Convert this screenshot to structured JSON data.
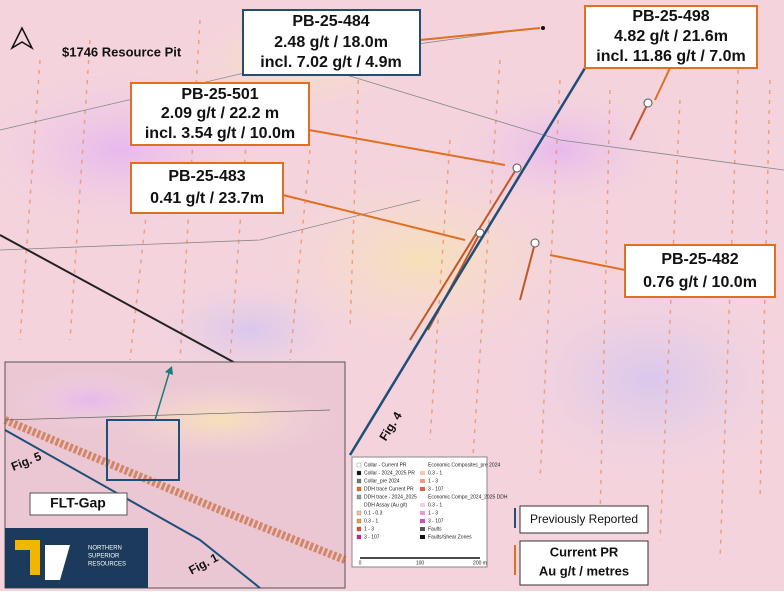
{
  "map_title": "$1746 Resource Pit",
  "callouts": [
    {
      "hole": "PB-25-484",
      "lines": [
        "2.48 g/t  / 18.0m",
        "incl. 7.02 g/t / 4.9m"
      ]
    },
    {
      "hole": "PB-25-498",
      "lines": [
        "4.82 g/t / 21.6m",
        "incl. 11.86 g/t / 7.0m"
      ]
    },
    {
      "hole": "PB-25-501",
      "lines": [
        "2.09 g/t / 22.2 m",
        "incl. 3.54 g/t / 10.0m"
      ]
    },
    {
      "hole": "PB-25-483",
      "lines": [
        "0.41 g/t / 23.7m"
      ]
    },
    {
      "hole": "PB-25-482",
      "lines": [
        "0.76 g/t / 10.0m"
      ]
    }
  ],
  "figure_refs": [
    "Fig. 4",
    "Fig. 5",
    "Fig. 1"
  ],
  "fault_label": "FLT-Gap",
  "key": {
    "previous": "Previously Reported",
    "current": "Current PR",
    "units": "Au g/t / metres"
  },
  "logo": {
    "line1": "NORTHERN",
    "line2": "SUPERIOR",
    "line3": "RESOURCES"
  },
  "legend": {
    "left": [
      "Collar - Current PR",
      "Collar - 2024_2025 PR",
      "Collar_pre 2024",
      "DDH trace Current PR",
      "DDH trace - 2024_2025",
      "DDH Assay (Au g/t)",
      "0.1 - 0.3",
      "0.3 - 1",
      "1 - 3",
      "3 - 107"
    ],
    "right": [
      "Economic Composites_pre 2024",
      "0.3 - 1",
      "1 - 3",
      "3 - 107",
      "Economic Compo_2024_2025 DDH",
      "0.3 - 1",
      "1 - 3",
      "3 - 107",
      "Faults",
      "Faults/Shear Zones"
    ],
    "scale": [
      "0",
      "100",
      "200 m"
    ]
  }
}
